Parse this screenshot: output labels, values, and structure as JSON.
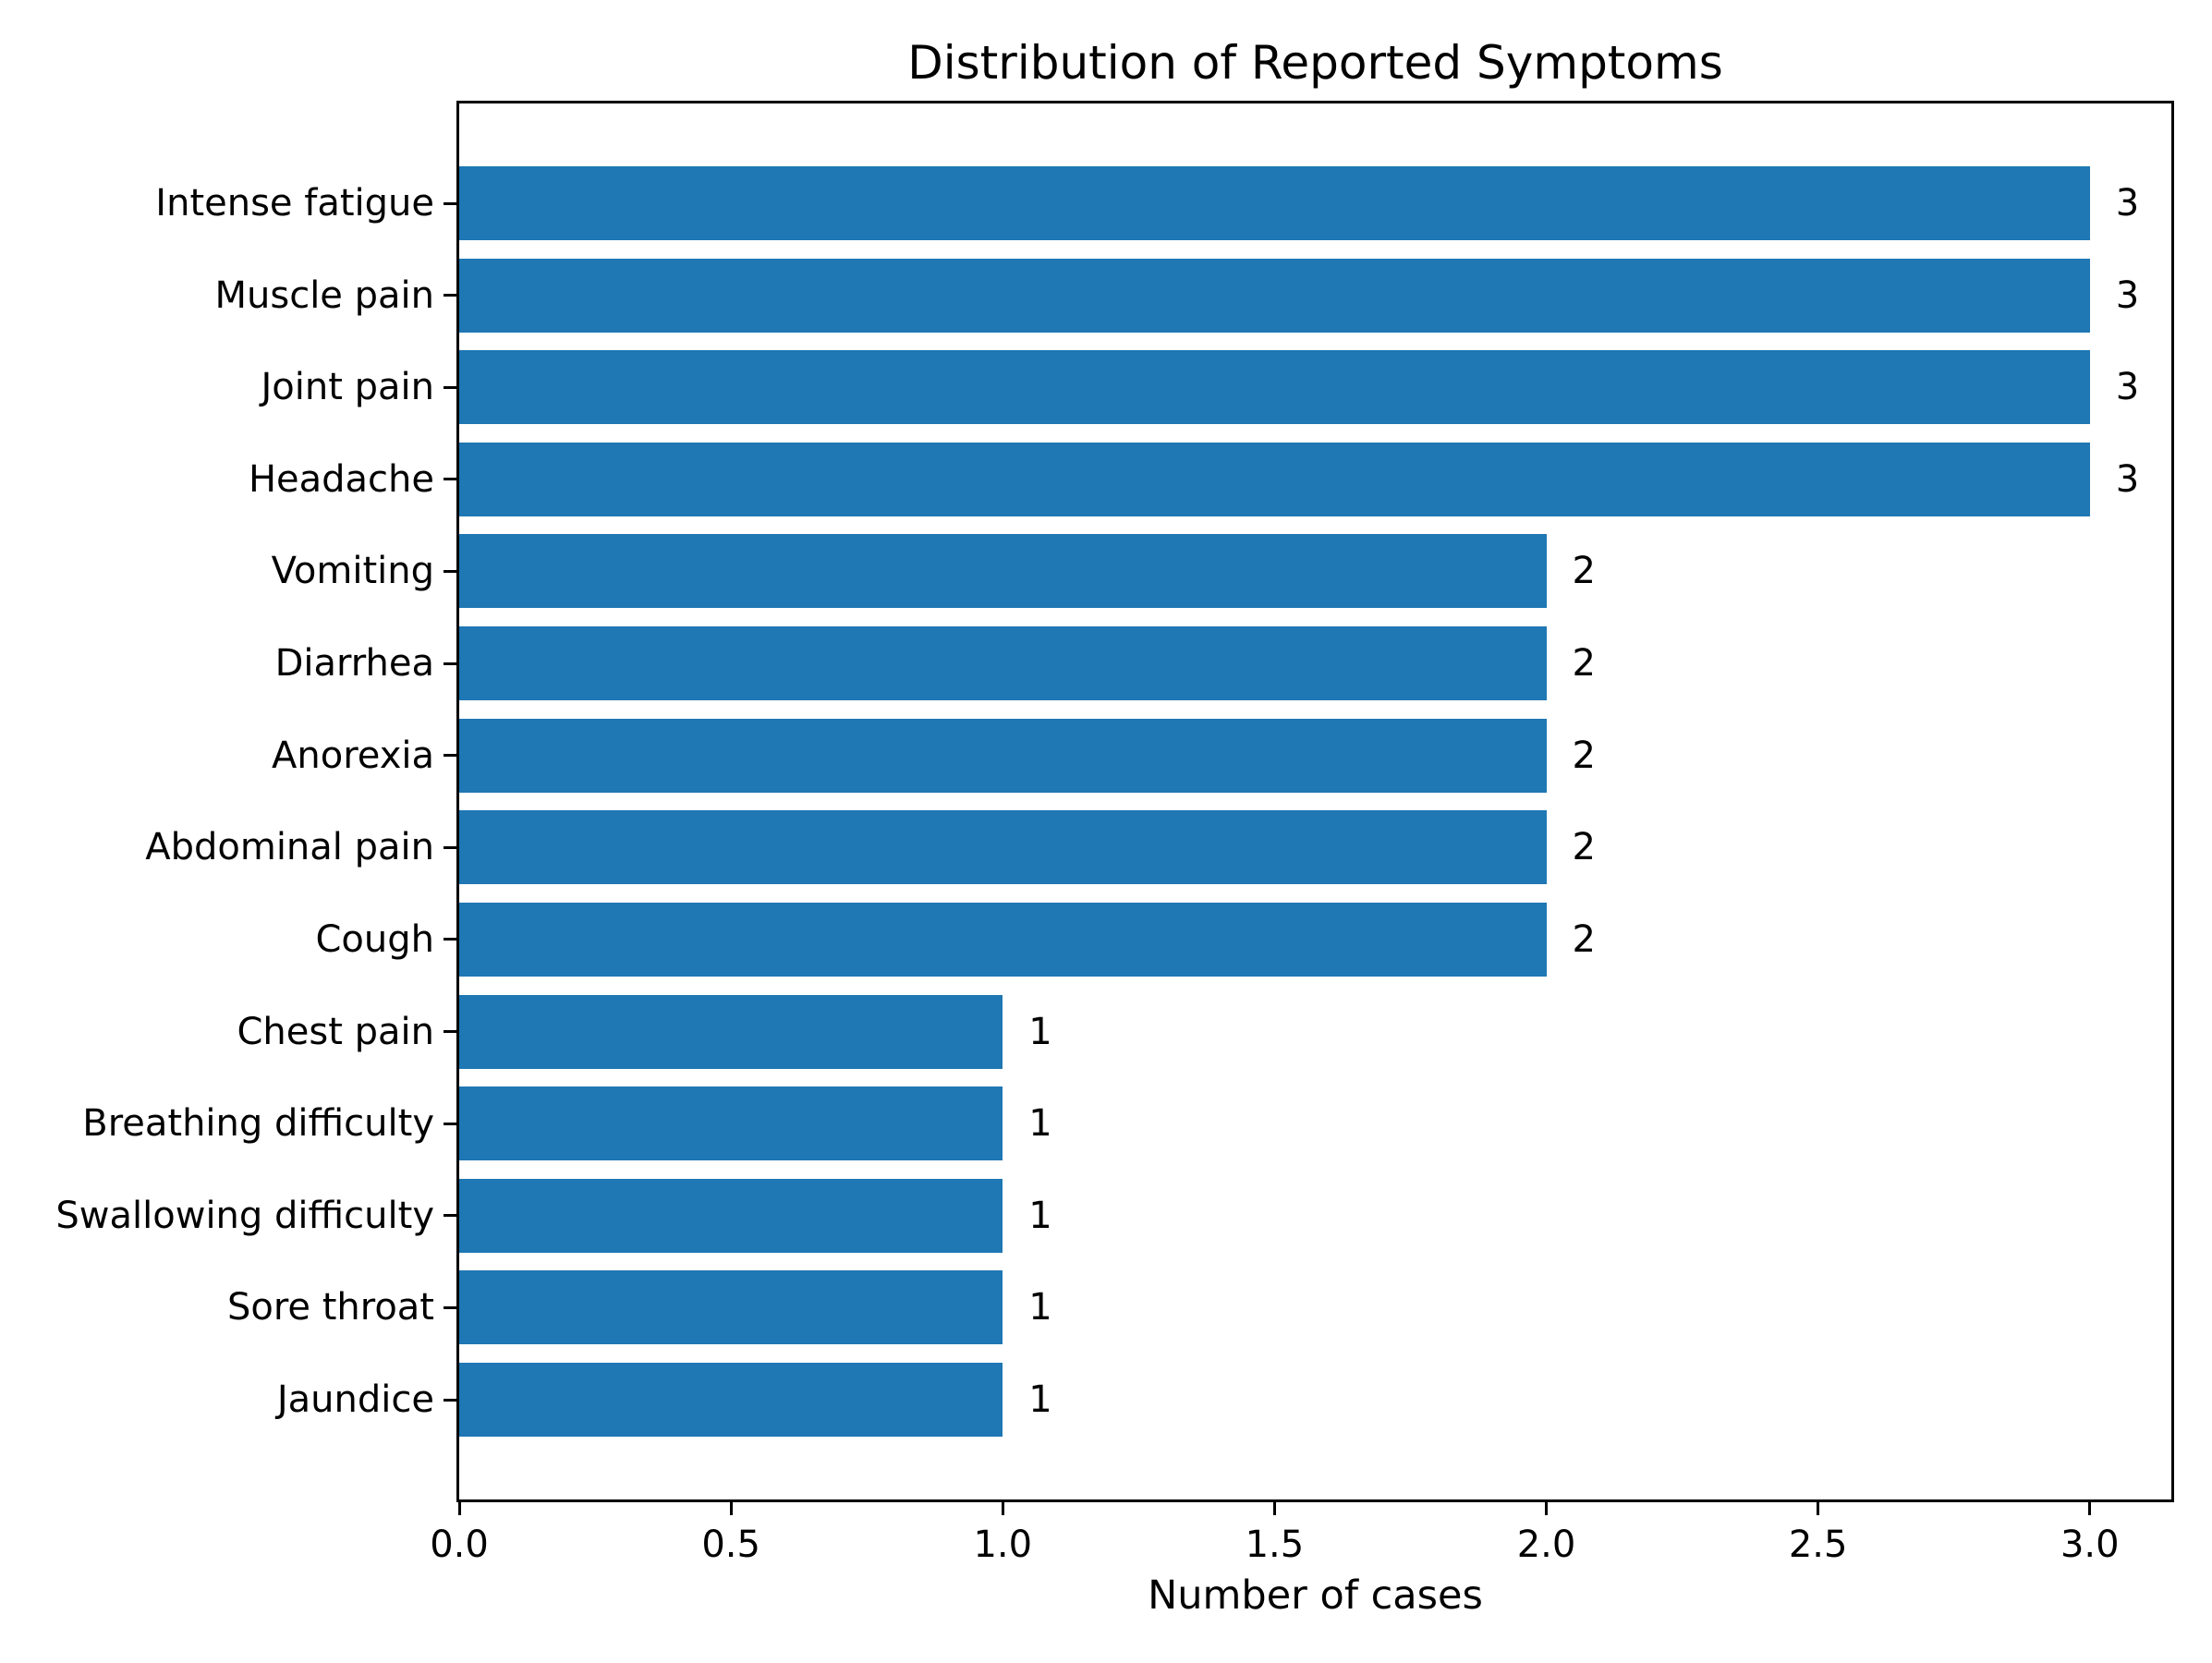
{
  "chart_data": {
    "type": "bar",
    "orientation": "horizontal",
    "title": "Distribution of Reported Symptoms",
    "xlabel": "Number of cases",
    "ylabel": "",
    "categories": [
      "Intense fatigue",
      "Muscle pain",
      "Joint pain",
      "Headache",
      "Vomiting",
      "Diarrhea",
      "Anorexia",
      "Abdominal pain",
      "Cough",
      "Chest pain",
      "Breathing difficulty",
      "Swallowing difficulty",
      "Sore throat",
      "Jaundice"
    ],
    "values": [
      3,
      3,
      3,
      3,
      2,
      2,
      2,
      2,
      2,
      1,
      1,
      1,
      1,
      1
    ],
    "bar_value_labels": [
      "3",
      "3",
      "3",
      "3",
      "2",
      "2",
      "2",
      "2",
      "2",
      "1",
      "1",
      "1",
      "1",
      "1"
    ],
    "xticks": [
      0.0,
      0.5,
      1.0,
      1.5,
      2.0,
      2.5,
      3.0
    ],
    "xtick_labels": [
      "0.0",
      "0.5",
      "1.0",
      "1.5",
      "2.0",
      "2.5",
      "3.0"
    ],
    "xlim": [
      0,
      3.15
    ],
    "grid": false,
    "legend": null,
    "bar_color": "#1f77b4",
    "text_color": "#000000",
    "background_color": "#ffffff"
  }
}
